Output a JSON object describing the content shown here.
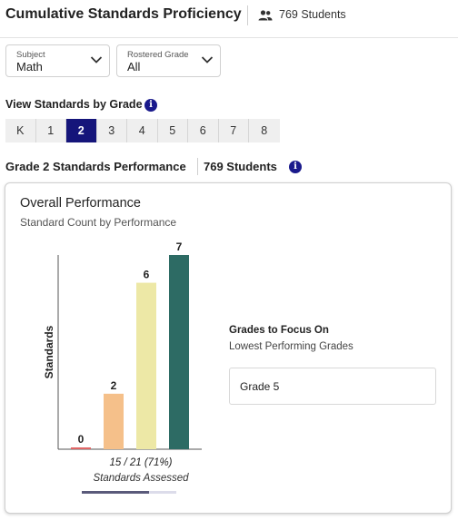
{
  "header": {
    "title": "Cumulative Standards Proficiency",
    "students_icon": "people-icon",
    "students": "769 Students"
  },
  "filters": {
    "subject": {
      "label": "Subject",
      "value": "Math"
    },
    "grade": {
      "label": "Rostered Grade",
      "value": "All"
    }
  },
  "grade_selector": {
    "heading": "View Standards by Grade",
    "info_icon": "info-icon",
    "tabs": [
      "K",
      "1",
      "2",
      "3",
      "4",
      "5",
      "6",
      "7",
      "8"
    ],
    "active": "2"
  },
  "performance": {
    "heading": "Grade 2 Standards Performance",
    "students": "769 Students"
  },
  "card": {
    "title": "Overall Performance",
    "subtitle": "Standard Count by Performance",
    "assessed_value": "15 / 21 (71%)",
    "assessed_label": "Standards Assessed",
    "assessed_fraction": 0.71,
    "focus": {
      "title": "Grades to Focus On",
      "subtitle": "Lowest Performing Grades",
      "items": [
        "Grade 5"
      ]
    }
  },
  "colors": {
    "accent": "#15157a",
    "info": "#1a1a8c",
    "bar_low": "#e06666",
    "bar_mid_low": "#f5c08a",
    "bar_mid_high": "#ede8a6",
    "bar_high": "#2d6b64"
  },
  "chart_data": {
    "type": "bar",
    "ylabel": "Standards",
    "xlabel": "",
    "ylim": [
      0,
      7
    ],
    "values": [
      0,
      2,
      6,
      7
    ],
    "colors": [
      "#e06666",
      "#f5c08a",
      "#ede8a6",
      "#2d6b64"
    ],
    "grid": false
  }
}
